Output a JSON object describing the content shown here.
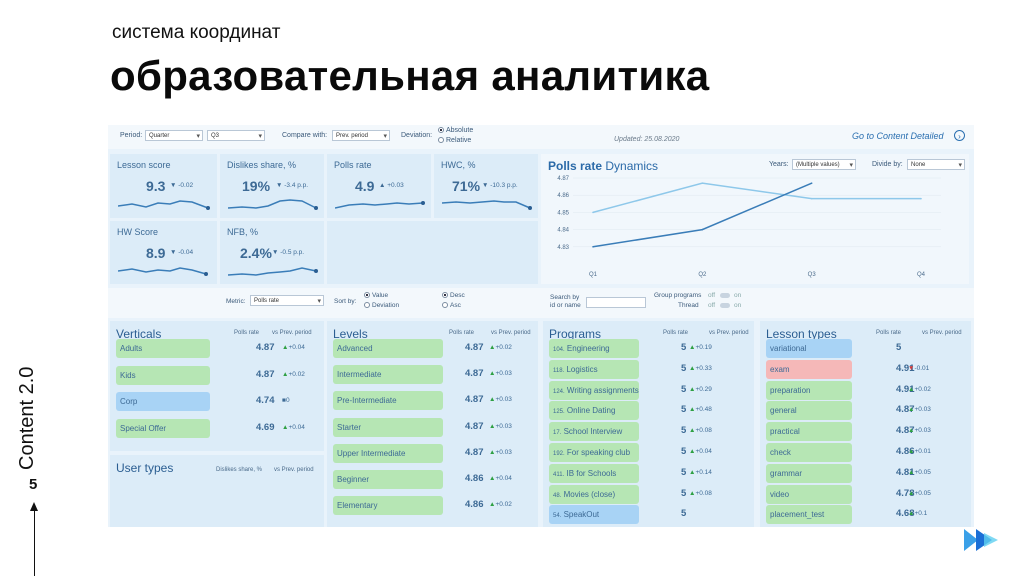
{
  "slide": {
    "subtitle": "система координат",
    "title": "образовательная аналитика",
    "side_label": "Content 2.0",
    "page_number": "5"
  },
  "filters": {
    "period_label": "Period:",
    "period_value": "Quarter",
    "quarter_value": "Q3",
    "compare_label": "Compare with:",
    "compare_value": "Prev. period",
    "deviation_label": "Deviation:",
    "deviation_options": [
      "Absolute",
      "Relative"
    ],
    "updated": "Updated: 25.08.2020",
    "goto": "Go to Content Detailed"
  },
  "kpis": [
    {
      "title": "Lesson score",
      "value": "9.3",
      "delta": "-0.02",
      "dir": "down"
    },
    {
      "title": "Dislikes share, %",
      "value": "19%",
      "delta": "-3.4 p.p.",
      "dir": "down"
    },
    {
      "title": "Polls rate",
      "value": "4.9",
      "delta": "+0.03",
      "dir": "up"
    },
    {
      "title": "HWC, %",
      "value": "71%",
      "delta": "-10.3 p.p.",
      "dir": "down"
    },
    {
      "title": "HW Score",
      "value": "8.9",
      "delta": "-0.04",
      "dir": "down"
    },
    {
      "title": "NFB, %",
      "value": "2.4%",
      "delta": "-0.5 p.p.",
      "dir": "down"
    }
  ],
  "chart": {
    "title_bold": "Polls rate",
    "title_rest": " Dynamics",
    "years_label": "Years:",
    "years_value": "(Multiple values)",
    "divide_label": "Divide by:",
    "divide_value": "None"
  },
  "chart_data": {
    "type": "line",
    "x": [
      "Q1",
      "Q2",
      "Q3",
      "Q4"
    ],
    "ylim": [
      4.82,
      4.87
    ],
    "yticks": [
      "4.87",
      "4.86",
      "4.85",
      "4.84",
      "4.83"
    ],
    "series": [
      {
        "values": [
          4.85,
          4.867,
          4.858,
          4.858
        ],
        "color": "#8ec8ea"
      },
      {
        "values": [
          4.83,
          4.84,
          4.867,
          null
        ],
        "color": "#3a7db8"
      }
    ]
  },
  "controls": {
    "metric_label": "Metric:",
    "metric_value": "Polls rate",
    "sort_label": "Sort by:",
    "sort_options": [
      "Value",
      "Deviation"
    ],
    "order_options": [
      "Desc",
      "Asc"
    ],
    "search_label": "Search by id or name",
    "group_programs": "Group programs",
    "thread": "Thread",
    "off": "off",
    "on": "on"
  },
  "verticals": {
    "title": "Verticals",
    "col1": "Polls rate",
    "col2": "vs Prev. period",
    "rows": [
      {
        "name": "Adults",
        "value": "4.87",
        "delta": "+0.04",
        "dir": "up",
        "color": "g"
      },
      {
        "name": "Kids",
        "value": "4.87",
        "delta": "+0.02",
        "dir": "up",
        "color": "g"
      },
      {
        "name": "Corp",
        "value": "4.74",
        "delta": "0",
        "dir": "flat",
        "color": "b"
      },
      {
        "name": "Special Offer",
        "value": "4.69",
        "delta": "+0.04",
        "dir": "up",
        "color": "g"
      }
    ]
  },
  "user_types": {
    "title": "User types",
    "col1": "Dislikes share, %",
    "col2": "vs Prev. period"
  },
  "levels": {
    "title": "Levels",
    "col1": "Polls rate",
    "col2": "vs Prev. period",
    "rows": [
      {
        "name": "Advanced",
        "value": "4.87",
        "delta": "+0.02",
        "dir": "up",
        "color": "g"
      },
      {
        "name": "Intermediate",
        "value": "4.87",
        "delta": "+0.03",
        "dir": "up",
        "color": "g"
      },
      {
        "name": "Pre-Intermediate",
        "value": "4.87",
        "delta": "+0.03",
        "dir": "up",
        "color": "g"
      },
      {
        "name": "Starter",
        "value": "4.87",
        "delta": "+0.03",
        "dir": "up",
        "color": "g"
      },
      {
        "name": "Upper Intermediate",
        "value": "4.87",
        "delta": "+0.03",
        "dir": "up",
        "color": "g"
      },
      {
        "name": "Beginner",
        "value": "4.86",
        "delta": "+0.04",
        "dir": "up",
        "color": "g"
      },
      {
        "name": "Elementary",
        "value": "4.86",
        "delta": "+0.02",
        "dir": "up",
        "color": "g"
      }
    ]
  },
  "programs": {
    "title": "Programs",
    "col1": "Polls rate",
    "col2": "vs Prev. period",
    "rows": [
      {
        "id": "104.",
        "name": "Engineering",
        "value": "5",
        "delta": "+0.19",
        "dir": "up",
        "color": "g"
      },
      {
        "id": "118.",
        "name": "Logistics",
        "value": "5",
        "delta": "+0.33",
        "dir": "up",
        "color": "g"
      },
      {
        "id": "124.",
        "name": "Writing assignments",
        "value": "5",
        "delta": "+0.29",
        "dir": "up",
        "color": "g"
      },
      {
        "id": "125.",
        "name": "Online Dating",
        "value": "5",
        "delta": "+0.48",
        "dir": "up",
        "color": "g"
      },
      {
        "id": "17.",
        "name": "School Interview",
        "value": "5",
        "delta": "+0.08",
        "dir": "up",
        "color": "g"
      },
      {
        "id": "192.",
        "name": "For speaking club",
        "value": "5",
        "delta": "+0.04",
        "dir": "up",
        "color": "g"
      },
      {
        "id": "411.",
        "name": "IB for Schools",
        "value": "5",
        "delta": "+0.14",
        "dir": "up",
        "color": "g"
      },
      {
        "id": "48.",
        "name": "Movies (close)",
        "value": "5",
        "delta": "+0.08",
        "dir": "up",
        "color": "g"
      },
      {
        "id": "54.",
        "name": "SpeakOut",
        "value": "5",
        "delta": "",
        "dir": "none",
        "color": "b"
      }
    ]
  },
  "lesson_types": {
    "title": "Lesson types",
    "col1": "Polls rate",
    "col2": "vs Prev. period",
    "rows": [
      {
        "name": "variational",
        "value": "5",
        "delta": "",
        "dir": "none",
        "color": "b"
      },
      {
        "name": "exam",
        "value": "4.91",
        "delta": "-0.01",
        "dir": "down",
        "color": "r"
      },
      {
        "name": "preparation",
        "value": "4.91",
        "delta": "+0.02",
        "dir": "up",
        "color": "g"
      },
      {
        "name": "general",
        "value": "4.87",
        "delta": "+0.03",
        "dir": "up",
        "color": "g"
      },
      {
        "name": "practical",
        "value": "4.87",
        "delta": "+0.03",
        "dir": "up",
        "color": "g"
      },
      {
        "name": "check",
        "value": "4.86",
        "delta": "+0.01",
        "dir": "up",
        "color": "g"
      },
      {
        "name": "grammar",
        "value": "4.81",
        "delta": "+0.05",
        "dir": "up",
        "color": "g"
      },
      {
        "name": "video",
        "value": "4.78",
        "delta": "+0.05",
        "dir": "up",
        "color": "g"
      },
      {
        "name": "placement_test",
        "value": "4.68",
        "delta": "+0.1",
        "dir": "up",
        "color": "g"
      }
    ]
  },
  "icons": {
    "goto": "chevron-right-icon",
    "logo": "double-chevron-logo"
  }
}
